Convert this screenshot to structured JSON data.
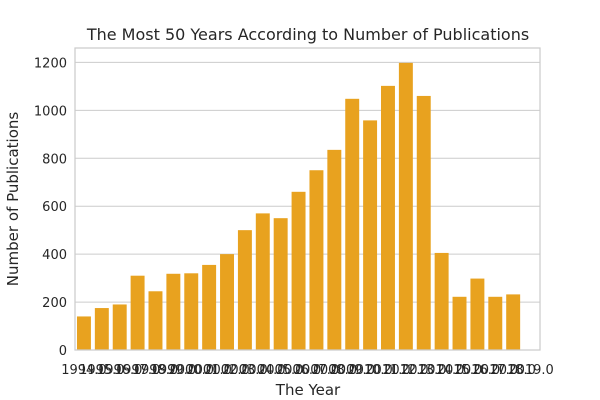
{
  "chart_data": {
    "type": "bar",
    "title": "The Most 50 Years According to Number of Publications",
    "xlabel": "The Year",
    "ylabel": "Number of Publications",
    "categories": [
      "1994.0",
      "1995.0",
      "1996.0",
      "1997.0",
      "1998.0",
      "1999.0",
      "2000.0",
      "2001.0",
      "2002.0",
      "2003.0",
      "2004.0",
      "2005.0",
      "2006.0",
      "2007.0",
      "2008.0",
      "2009.0",
      "2010.0",
      "2011.0",
      "2012.0",
      "2013.0",
      "2014.0",
      "2015.0",
      "2016.0",
      "2017.0",
      "2018.0",
      "2019.0"
    ],
    "values": [
      140,
      175,
      190,
      310,
      245,
      318,
      320,
      355,
      400,
      500,
      570,
      550,
      660,
      750,
      835,
      1048,
      958,
      1102,
      1198,
      1060,
      405,
      222,
      298,
      222,
      232,
      0
    ],
    "yticks": [
      0,
      200,
      400,
      600,
      800,
      1000,
      1200
    ],
    "ylim": [
      0,
      1260
    ],
    "grid": true,
    "colors": {
      "bar": "#e8a21f"
    }
  }
}
